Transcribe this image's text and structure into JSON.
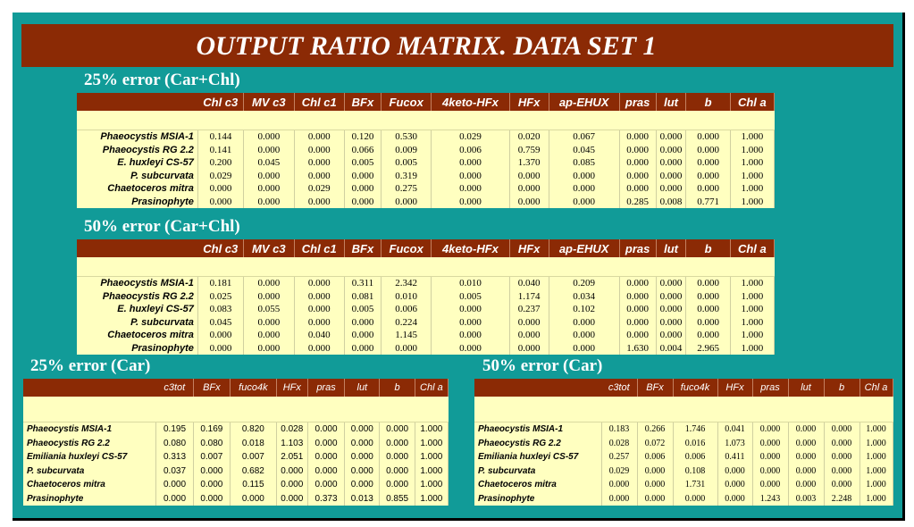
{
  "title": "OUTPUT RATIO MATRIX. DATA SET 1",
  "colors": {
    "frame": "#119b98",
    "title_bar": "#8b2a05",
    "header_row": "#8b2a05",
    "table_bg": "#ffffc0"
  },
  "tables": [
    {
      "heading": "25% error (Car+Chl)",
      "columns": [
        "Chl c3",
        "MV c3",
        "Chl c1",
        "BFx",
        "Fucox",
        "4keto-HFx",
        "HFx",
        "ap-EHUX",
        "pras",
        "lut",
        "b",
        "Chl a"
      ],
      "rows": [
        {
          "label": "Phaeocystis MSIA-1",
          "values": [
            "0.144",
            "0.000",
            "0.000",
            "0.120",
            "0.530",
            "0.029",
            "0.020",
            "0.067",
            "0.000",
            "0.000",
            "0.000",
            "1.000"
          ]
        },
        {
          "label": "Phaeocystis RG 2.2",
          "values": [
            "0.141",
            "0.000",
            "0.000",
            "0.066",
            "0.009",
            "0.006",
            "0.759",
            "0.045",
            "0.000",
            "0.000",
            "0.000",
            "1.000"
          ]
        },
        {
          "label": "E. huxleyi CS-57",
          "values": [
            "0.200",
            "0.045",
            "0.000",
            "0.005",
            "0.005",
            "0.000",
            "1.370",
            "0.085",
            "0.000",
            "0.000",
            "0.000",
            "1.000"
          ]
        },
        {
          "label": "P. subcurvata",
          "values": [
            "0.029",
            "0.000",
            "0.000",
            "0.000",
            "0.319",
            "0.000",
            "0.000",
            "0.000",
            "0.000",
            "0.000",
            "0.000",
            "1.000"
          ]
        },
        {
          "label": "Chaetoceros mitra",
          "values": [
            "0.000",
            "0.000",
            "0.029",
            "0.000",
            "0.275",
            "0.000",
            "0.000",
            "0.000",
            "0.000",
            "0.000",
            "0.000",
            "1.000"
          ]
        },
        {
          "label": "Prasinophyte",
          "values": [
            "0.000",
            "0.000",
            "0.000",
            "0.000",
            "0.000",
            "0.000",
            "0.000",
            "0.000",
            "0.285",
            "0.008",
            "0.771",
            "1.000"
          ]
        }
      ]
    },
    {
      "heading": "50% error (Car+Chl)",
      "columns": [
        "Chl c3",
        "MV c3",
        "Chl c1",
        "BFx",
        "Fucox",
        "4keto-HFx",
        "HFx",
        "ap-EHUX",
        "pras",
        "lut",
        "b",
        "Chl a"
      ],
      "rows": [
        {
          "label": "Phaeocystis MSIA-1",
          "values": [
            "0.181",
            "0.000",
            "0.000",
            "0.311",
            "2.342",
            "0.010",
            "0.040",
            "0.209",
            "0.000",
            "0.000",
            "0.000",
            "1.000"
          ]
        },
        {
          "label": "Phaeocystis RG 2.2",
          "values": [
            "0.025",
            "0.000",
            "0.000",
            "0.081",
            "0.010",
            "0.005",
            "1.174",
            "0.034",
            "0.000",
            "0.000",
            "0.000",
            "1.000"
          ]
        },
        {
          "label": "E. huxleyi CS-57",
          "values": [
            "0.083",
            "0.055",
            "0.000",
            "0.005",
            "0.006",
            "0.000",
            "0.237",
            "0.102",
            "0.000",
            "0.000",
            "0.000",
            "1.000"
          ]
        },
        {
          "label": "P. subcurvata",
          "values": [
            "0.045",
            "0.000",
            "0.000",
            "0.000",
            "0.224",
            "0.000",
            "0.000",
            "0.000",
            "0.000",
            "0.000",
            "0.000",
            "1.000"
          ]
        },
        {
          "label": "Chaetoceros mitra",
          "values": [
            "0.000",
            "0.000",
            "0.040",
            "0.000",
            "1.145",
            "0.000",
            "0.000",
            "0.000",
            "0.000",
            "0.000",
            "0.000",
            "1.000"
          ]
        },
        {
          "label": "Prasinophyte",
          "values": [
            "0.000",
            "0.000",
            "0.000",
            "0.000",
            "0.000",
            "0.000",
            "0.000",
            "0.000",
            "1.630",
            "0.004",
            "2.965",
            "1.000"
          ]
        }
      ]
    },
    {
      "heading": "25% error (Car)",
      "columns": [
        "c3tot",
        "BFx",
        "fuco4k",
        "HFx",
        "pras",
        "lut",
        "b",
        "Chl a"
      ],
      "rows": [
        {
          "label": "Phaeocystis MSIA-1",
          "values": [
            "0.195",
            "0.169",
            "0.820",
            "0.028",
            "0.000",
            "0.000",
            "0.000",
            "1.000"
          ]
        },
        {
          "label": "Phaeocystis RG 2.2",
          "values": [
            "0.080",
            "0.080",
            "0.018",
            "1.103",
            "0.000",
            "0.000",
            "0.000",
            "1.000"
          ]
        },
        {
          "label": "Emiliania huxleyi CS-57",
          "values": [
            "0.313",
            "0.007",
            "0.007",
            "2.051",
            "0.000",
            "0.000",
            "0.000",
            "1.000"
          ]
        },
        {
          "label": "P. subcurvata",
          "values": [
            "0.037",
            "0.000",
            "0.682",
            "0.000",
            "0.000",
            "0.000",
            "0.000",
            "1.000"
          ]
        },
        {
          "label": "Chaetoceros mitra",
          "values": [
            "0.000",
            "0.000",
            "0.115",
            "0.000",
            "0.000",
            "0.000",
            "0.000",
            "1.000"
          ]
        },
        {
          "label": "Prasinophyte",
          "values": [
            "0.000",
            "0.000",
            "0.000",
            "0.000",
            "0.373",
            "0.013",
            "0.855",
            "1.000"
          ]
        }
      ]
    },
    {
      "heading": "50% error (Car)",
      "columns": [
        "c3tot",
        "BFx",
        "fuco4k",
        "HFx",
        "pras",
        "lut",
        "b",
        "Chl a"
      ],
      "rows": [
        {
          "label": "Phaeocystis MSIA-1",
          "values": [
            "0.183",
            "0.266",
            "1.746",
            "0.041",
            "0.000",
            "0.000",
            "0.000",
            "1.000"
          ]
        },
        {
          "label": "Phaeocystis RG 2.2",
          "values": [
            "0.028",
            "0.072",
            "0.016",
            "1.073",
            "0.000",
            "0.000",
            "0.000",
            "1.000"
          ]
        },
        {
          "label": "Emiliania huxleyi CS-57",
          "values": [
            "0.257",
            "0.006",
            "0.006",
            "0.411",
            "0.000",
            "0.000",
            "0.000",
            "1.000"
          ]
        },
        {
          "label": "P. subcurvata",
          "values": [
            "0.029",
            "0.000",
            "0.108",
            "0.000",
            "0.000",
            "0.000",
            "0.000",
            "1.000"
          ]
        },
        {
          "label": "Chaetoceros mitra",
          "values": [
            "0.000",
            "0.000",
            "1.731",
            "0.000",
            "0.000",
            "0.000",
            "0.000",
            "1.000"
          ]
        },
        {
          "label": "Prasinophyte",
          "values": [
            "0.000",
            "0.000",
            "0.000",
            "0.000",
            "1.243",
            "0.003",
            "2.248",
            "1.000"
          ]
        }
      ]
    }
  ]
}
